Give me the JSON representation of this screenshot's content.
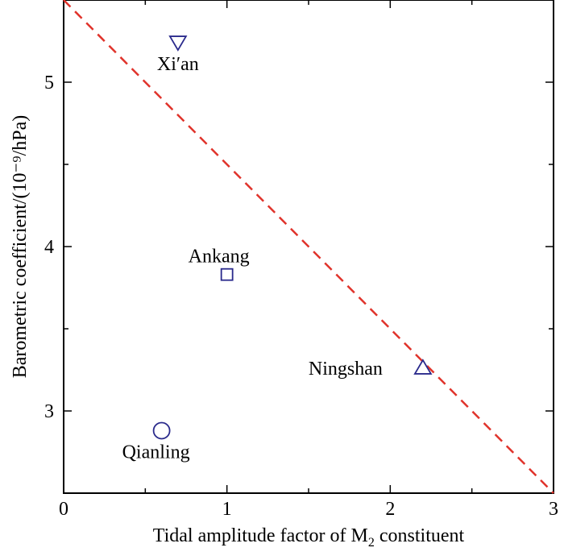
{
  "chart_data": {
    "type": "scatter",
    "title": "",
    "xlabel": {
      "main": "Tidal amplitude factor of M",
      "subscript": "2",
      "rest": " constituent"
    },
    "ylabel": "Barometric coefficient/(10⁻⁹/hPa)",
    "xlim": [
      0,
      3
    ],
    "ylim": [
      2.5,
      5.5
    ],
    "xticks": [
      0,
      1,
      2,
      3
    ],
    "xtick_labels": [
      "0",
      "1",
      "2",
      "3"
    ],
    "yticks": [
      3,
      4,
      5
    ],
    "ytick_labels": [
      "3",
      "4",
      "5"
    ],
    "points": [
      {
        "name": "Xi′an",
        "x": 0.7,
        "y": 5.24,
        "marker": "triangle-down"
      },
      {
        "name": "Ankang",
        "x": 1.0,
        "y": 3.83,
        "marker": "square"
      },
      {
        "name": "Ningshan",
        "x": 2.2,
        "y": 3.26,
        "marker": "triangle-up"
      },
      {
        "name": "Qianling",
        "x": 0.6,
        "y": 2.88,
        "marker": "circle"
      }
    ],
    "fit_line": {
      "x": [
        0,
        3
      ],
      "y": [
        5.5,
        2.5
      ],
      "style": "dashed"
    },
    "colors": {
      "marker": "#2a2a8c",
      "fit_line": "#e0332b",
      "axis": "#000000"
    }
  }
}
